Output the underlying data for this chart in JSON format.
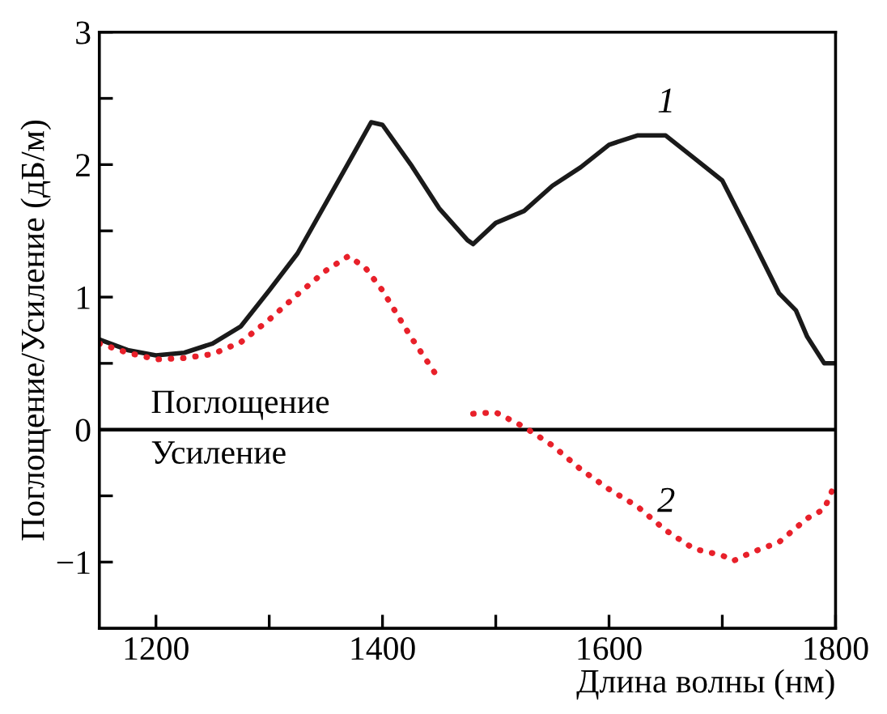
{
  "chart_data": {
    "type": "line",
    "xlabel": "Длина волны (нм)",
    "ylabel": "Поглощение/Усиление (дБ/м)",
    "xlim": [
      1150,
      1800
    ],
    "ylim": [
      -1.5,
      3
    ],
    "xticks": [
      1200,
      {
        "value": 1300,
        "label": null
      },
      1400,
      {
        "value": 1500,
        "label": null
      },
      1600,
      {
        "value": 1700,
        "label": null
      },
      1800
    ],
    "yticks": [
      {
        "value": -1,
        "label": "−1"
      },
      {
        "value": -0.5,
        "label": null
      },
      0,
      {
        "value": 0.5,
        "label": null
      },
      1,
      {
        "value": 1.5,
        "label": null
      },
      2,
      {
        "value": 2.5,
        "label": null
      },
      3
    ],
    "grid": false,
    "legend": false,
    "ref_lines": [
      {
        "axis": "y",
        "value": 0,
        "color": "#000000",
        "line_style": "solid"
      }
    ],
    "annotations": [
      "Поглощение",
      "Усиление"
    ],
    "series": [
      {
        "name": "1",
        "color": "#1a1a1a",
        "line_style": "solid",
        "x": [
          1150,
          1175,
          1200,
          1225,
          1250,
          1275,
          1300,
          1325,
          1350,
          1375,
          1390,
          1400,
          1425,
          1450,
          1475,
          1480,
          1500,
          1525,
          1550,
          1575,
          1600,
          1625,
          1650,
          1675,
          1700,
          1725,
          1750,
          1765,
          1775,
          1790,
          1800
        ],
        "values": [
          0.68,
          0.6,
          0.56,
          0.58,
          0.65,
          0.78,
          1.05,
          1.33,
          1.71,
          2.09,
          2.32,
          2.3,
          2.0,
          1.67,
          1.43,
          1.4,
          1.56,
          1.65,
          1.84,
          1.98,
          2.15,
          2.22,
          2.22,
          2.05,
          1.88,
          1.46,
          1.03,
          0.9,
          0.7,
          0.5,
          0.5
        ]
      },
      {
        "name": "2",
        "color": "#e8202a",
        "line_style": "dotted",
        "x": [
          1150,
          1175,
          1200,
          1225,
          1250,
          1275,
          1300,
          1325,
          1350,
          1370,
          1385,
          1400,
          1425,
          1450,
          1465,
          1480,
          1500,
          1525,
          1550,
          1575,
          1600,
          1625,
          1650,
          1675,
          1700,
          1710,
          1725,
          1750,
          1775,
          1790,
          1800
        ],
        "values": [
          0.65,
          0.58,
          0.53,
          0.54,
          0.57,
          0.66,
          0.83,
          1.02,
          1.2,
          1.31,
          1.22,
          1.05,
          0.7,
          0.38,
          null,
          0.12,
          0.13,
          0.02,
          -0.12,
          -0.3,
          -0.45,
          -0.58,
          -0.76,
          -0.9,
          -0.95,
          -0.99,
          -0.93,
          -0.85,
          -0.67,
          -0.6,
          -0.4
        ]
      }
    ]
  }
}
